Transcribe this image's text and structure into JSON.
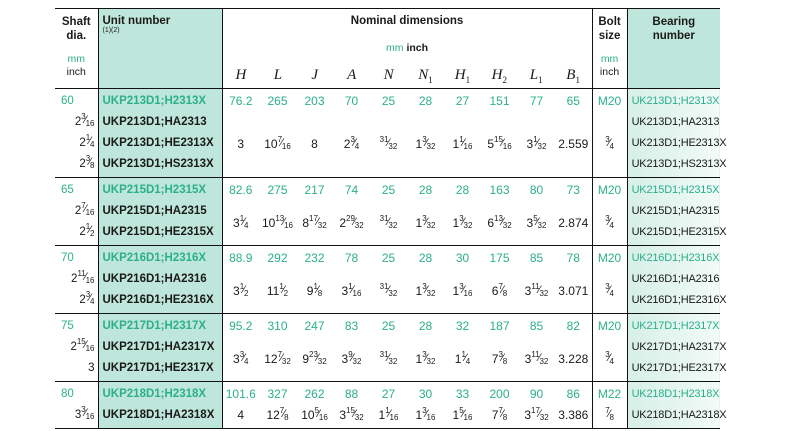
{
  "header": {
    "shaft": "Shaft dia.",
    "unit": "Unit  number",
    "unit_notes": "(1)(2)",
    "nominal": "Nominal dimensions",
    "mm": "mm",
    "inch": "inch",
    "symbols": [
      "H",
      "L",
      "J",
      "A",
      "N",
      "N|1",
      "H|1",
      "H|2",
      "L|1",
      "B|1"
    ],
    "bolt": "Bolt size",
    "bearing": "Bearing number"
  },
  "colors": {
    "accent_text": "#2bb08a",
    "unit_bg": "#bfe6da",
    "bearing_bg": "#d6efe7"
  },
  "groups": [
    {
      "shaft_mm": "60",
      "shaft_in": [
        "2 3/16",
        "2 1/4",
        "2 3/8"
      ],
      "units": [
        "UKP213D1;H2313X",
        "UKP213D1;HA2313",
        "UKP213D1;HE2313X",
        "UKP213D1;HS2313X"
      ],
      "dims_mm": [
        "76.2",
        "265",
        "203",
        "70",
        "25",
        "28",
        "27",
        "151",
        "77",
        "65"
      ],
      "dims_in": [
        "3",
        "10 7/16",
        "8",
        "2 3/4",
        "31/32",
        "1 3/32",
        "1 1/16",
        "5 15/16",
        "3 1/32",
        "2.559"
      ],
      "bolt_mm": "M20",
      "bolt_in": "3/4",
      "bearings": [
        "UK213D1;H2313X",
        "UK213D1;HA2313",
        "UK213D1;HE2313X",
        "UK213D1;HS2313X"
      ]
    },
    {
      "shaft_mm": "65",
      "shaft_in": [
        "2 7/16",
        "2 1/2"
      ],
      "units": [
        "UKP215D1;H2315X",
        "UKP215D1;HA2315",
        "UKP215D1;HE2315X"
      ],
      "dims_mm": [
        "82.6",
        "275",
        "217",
        "74",
        "25",
        "28",
        "28",
        "163",
        "80",
        "73"
      ],
      "dims_in": [
        "3 1/4",
        "10 13/16",
        "8 17/32",
        "2 29/32",
        "31/32",
        "1 3/32",
        "1 3/32",
        "6 13/32",
        "3 5/32",
        "2.874"
      ],
      "bolt_mm": "M20",
      "bolt_in": "3/4",
      "bearings": [
        "UK215D1;H2315X",
        "UK215D1;HA2315",
        "UK215D1;HE2315X"
      ]
    },
    {
      "shaft_mm": "70",
      "shaft_in": [
        "2 11/16",
        "2 3/4"
      ],
      "units": [
        "UKP216D1;H2316X",
        "UKP216D1;HA2316",
        "UKP216D1;HE2316X"
      ],
      "dims_mm": [
        "88.9",
        "292",
        "232",
        "78",
        "25",
        "28",
        "30",
        "175",
        "85",
        "78"
      ],
      "dims_in": [
        "3 1/2",
        "11 1/2",
        "9 1/8",
        "3 1/16",
        "31/32",
        "1 3/32",
        "1 3/16",
        "6 7/8",
        "3 11/32",
        "3.071"
      ],
      "bolt_mm": "M20",
      "bolt_in": "3/4",
      "bearings": [
        "UK216D1;H2316X",
        "UK216D1;HA2316",
        "UK216D1;HE2316X"
      ]
    },
    {
      "shaft_mm": "75",
      "shaft_in": [
        "2 15/16",
        "3"
      ],
      "units": [
        "UKP217D1;H2317X",
        "UKP217D1;HA2317X",
        "UKP217D1;HE2317X"
      ],
      "dims_mm": [
        "95.2",
        "310",
        "247",
        "83",
        "25",
        "28",
        "32",
        "187",
        "85",
        "82"
      ],
      "dims_in": [
        "3 3/4",
        "12 7/32",
        "9 23/32",
        "3 9/32",
        "31/32",
        "1 3/32",
        "1 1/4",
        "7 3/8",
        "3 11/32",
        "3.228"
      ],
      "bolt_mm": "M20",
      "bolt_in": "3/4",
      "bearings": [
        "UK217D1;H2317X",
        "UK217D1;HA2317X",
        "UK217D1;HE2317X"
      ]
    },
    {
      "shaft_mm": "80",
      "shaft_in": [
        "3 3/16"
      ],
      "units": [
        "UKP218D1;H2318X",
        "UKP218D1;HA2318X"
      ],
      "dims_mm": [
        "101.6",
        "327",
        "262",
        "88",
        "27",
        "30",
        "33",
        "200",
        "90",
        "86"
      ],
      "dims_in": [
        "4",
        "12 7/8",
        "10 5/16",
        "3 15/32",
        "1 1/16",
        "1 3/16",
        "1 5/16",
        "7 7/8",
        "3 17/32",
        "3.386"
      ],
      "bolt_mm": "M22",
      "bolt_in": "7/8",
      "bearings": [
        "UK218D1;H2318X",
        "UK218D1;HA2318X"
      ]
    }
  ]
}
